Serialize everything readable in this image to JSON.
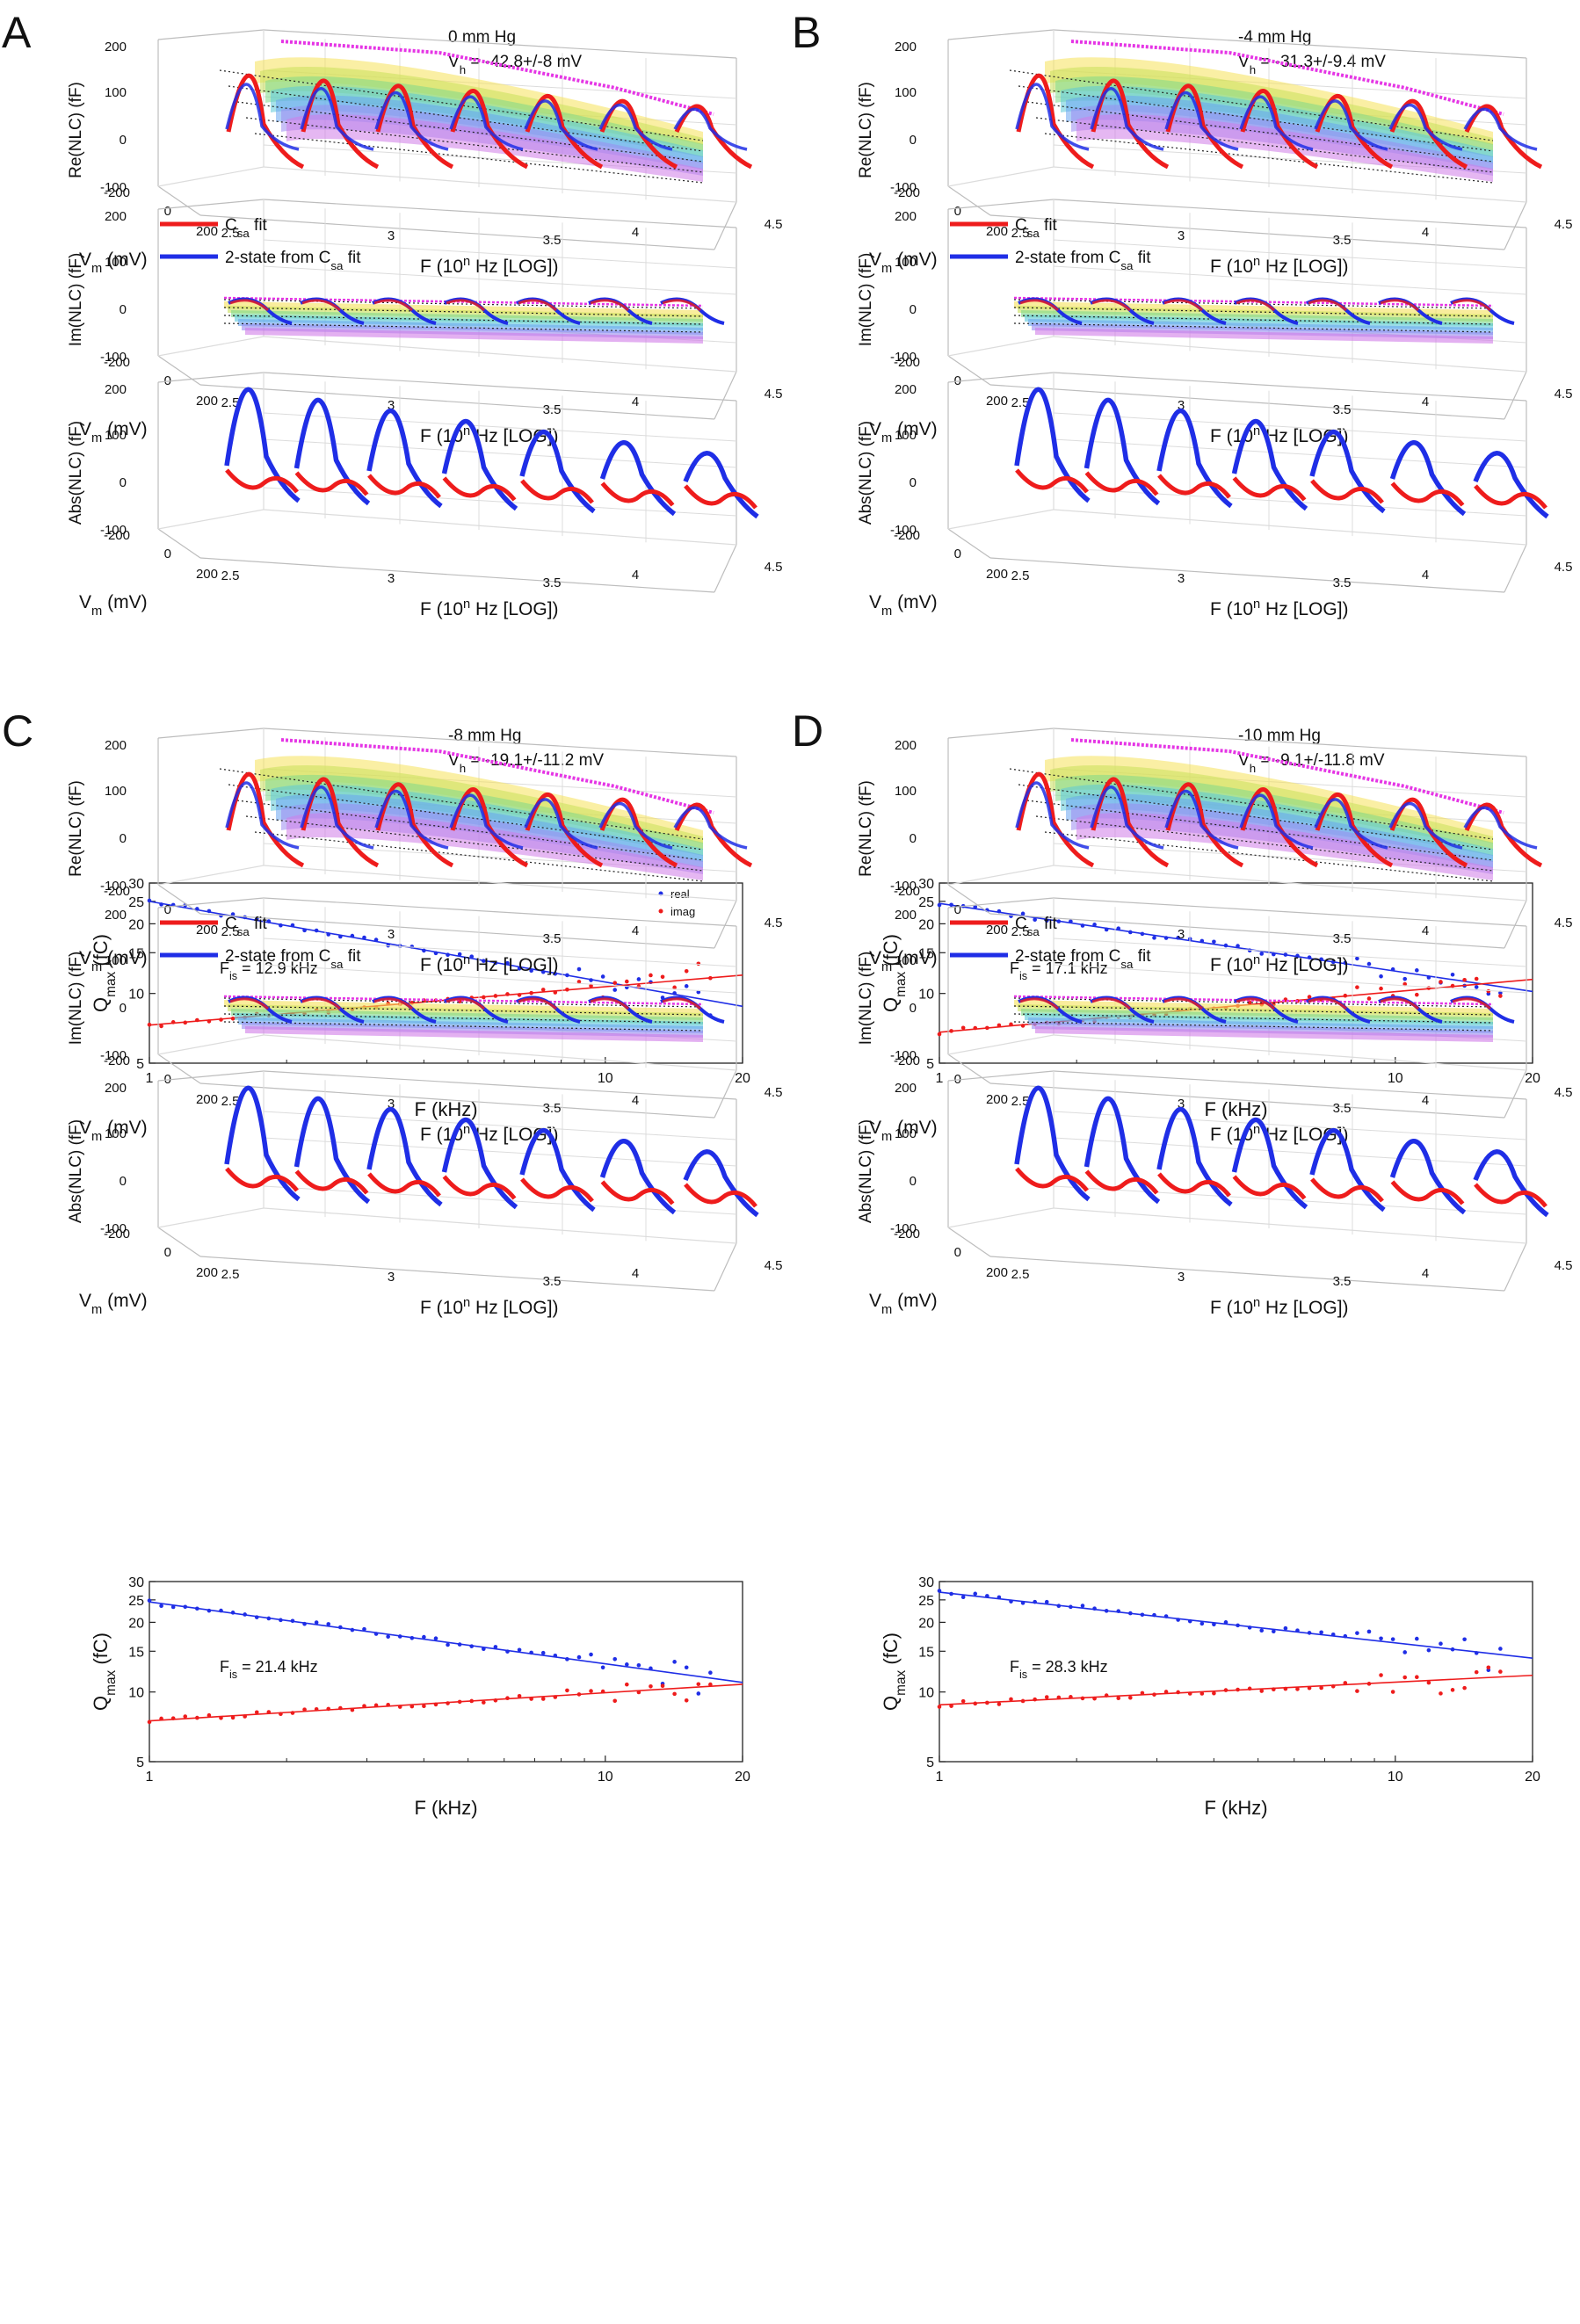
{
  "figure": {
    "background": "#ffffff"
  },
  "colors": {
    "red": "#ee1c1c",
    "blue": "#1f2ee6",
    "magenta": "#e535e5",
    "axis": "#222222",
    "grid": "#dcdcdc"
  },
  "panels": [
    {
      "label": "A",
      "pressure": "0 mm Hg",
      "vh_value": "-42.8+/-8",
      "vh_unit": "mV",
      "fis": "12.9 kHz",
      "show_legend_scatter": true
    },
    {
      "label": "B",
      "pressure": "-4 mm Hg",
      "vh_value": "-31.3+/-9.4",
      "vh_unit": "mV",
      "fis": "17.1 kHz",
      "show_legend_scatter": false
    },
    {
      "label": "C",
      "pressure": "-8 mm Hg",
      "vh_value": "-19.1+/-11.2",
      "vh_unit": "mV",
      "fis": "21.4 kHz",
      "show_legend_scatter": false
    },
    {
      "label": "D",
      "pressure": "-10 mm Hg",
      "vh_value": "-9.1+/-11.8",
      "vh_unit": "mV",
      "fis": "28.3 kHz",
      "show_legend_scatter": false
    }
  ],
  "plot3d_common": {
    "z_ticks": [
      "200",
      "100",
      "0",
      "-100"
    ],
    "vm_ticks": [
      "-200",
      "0",
      "200"
    ],
    "f_ticks": [
      "2.5",
      "3",
      "3.5",
      "4",
      "4.5"
    ],
    "f_label_prefix": "F (10",
    "f_label_exp": "n",
    "f_label_suffix": " Hz [LOG])",
    "vm_label_main": "V",
    "vm_label_sub": "m",
    "vm_label_unit": " (mV)",
    "vh_prefix": "V",
    "vh_sub": "h",
    "vh_eq": " = "
  },
  "plots3d": [
    {
      "key": "re",
      "ylabel": "Re(NLC)  (fF)",
      "has_legend": false
    },
    {
      "key": "im",
      "ylabel": "Im(NLC)  (fF)",
      "has_legend": true
    },
    {
      "key": "abs",
      "ylabel": "Abs(NLC) (fF)",
      "has_legend": false
    }
  ],
  "legend": {
    "csa_main": "C",
    "csa_sub": "sa",
    "csa_suffix": " fit",
    "two_state_prefix": "2-state from C",
    "two_state_sub": "sa",
    "two_state_suffix": " fit"
  },
  "scatter_common": {
    "ylabel_main": "Q",
    "ylabel_sub": "max",
    "ylabel_unit": " (fC)",
    "xlabel": "F (kHz)",
    "y_ticks": [
      "5",
      "10",
      "15",
      "20",
      "25",
      "30"
    ],
    "x_ticks": [
      "1",
      "10",
      "20"
    ],
    "fis_prefix": "F",
    "fis_sub": "is",
    "fis_eq": " = ",
    "legend_real": "real",
    "legend_imag": "imag"
  },
  "chart_data": [
    {
      "type": "scatter",
      "panel": "A",
      "title": "",
      "xlabel": "F (kHz)",
      "ylabel": "Qmax (fC)",
      "xscale": "log",
      "yscale": "log",
      "xlim": [
        1,
        20
      ],
      "ylim": [
        5,
        30
      ],
      "isofrequency_kHz": 12.9,
      "series": [
        {
          "name": "real",
          "fit": {
            "at_1kHz": 25,
            "at_20kHz": 8.8
          }
        },
        {
          "name": "imag",
          "fit": {
            "at_1kHz": 7.3,
            "at_20kHz": 12
          }
        }
      ]
    },
    {
      "type": "scatter",
      "panel": "B",
      "title": "",
      "xlabel": "F (kHz)",
      "ylabel": "Qmax (fC)",
      "xscale": "log",
      "yscale": "log",
      "xlim": [
        1,
        20
      ],
      "ylim": [
        5,
        30
      ],
      "isofrequency_kHz": 17.1,
      "series": [
        {
          "name": "real",
          "fit": {
            "at_1kHz": 24.5,
            "at_20kHz": 10.2
          }
        },
        {
          "name": "imag",
          "fit": {
            "at_1kHz": 6.8,
            "at_20kHz": 11.5
          }
        }
      ]
    },
    {
      "type": "scatter",
      "panel": "C",
      "title": "",
      "xlabel": "F (kHz)",
      "ylabel": "Qmax (fC)",
      "xscale": "log",
      "yscale": "log",
      "xlim": [
        1,
        20
      ],
      "ylim": [
        5,
        30
      ],
      "isofrequency_kHz": 21.4,
      "series": [
        {
          "name": "real",
          "fit": {
            "at_1kHz": 24.5,
            "at_20kHz": 11
          }
        },
        {
          "name": "imag",
          "fit": {
            "at_1kHz": 7.5,
            "at_20kHz": 10.8
          }
        }
      ]
    },
    {
      "type": "scatter",
      "panel": "D",
      "title": "",
      "xlabel": "F (kHz)",
      "ylabel": "Qmax (fC)",
      "xscale": "log",
      "yscale": "log",
      "xlim": [
        1,
        20
      ],
      "ylim": [
        5,
        30
      ],
      "isofrequency_kHz": 28.3,
      "series": [
        {
          "name": "real",
          "fit": {
            "at_1kHz": 27,
            "at_20kHz": 14
          }
        },
        {
          "name": "imag",
          "fit": {
            "at_1kHz": 8.8,
            "at_20kHz": 11.8
          }
        }
      ]
    }
  ]
}
